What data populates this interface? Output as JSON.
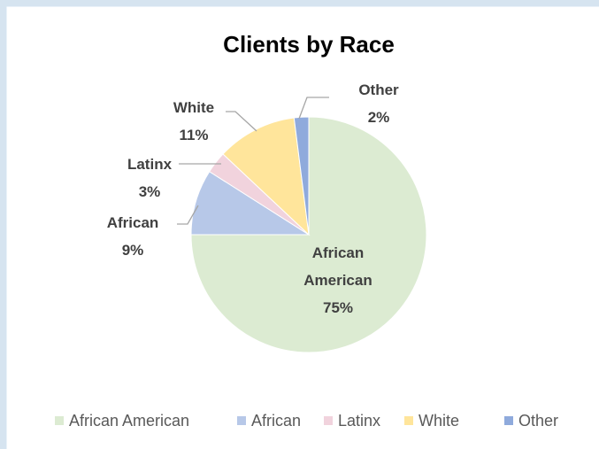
{
  "chart_data": {
    "type": "pie",
    "title": "Clients by Race",
    "categories": [
      "African American",
      "African",
      "Latinx",
      "White",
      "Other"
    ],
    "values": [
      75,
      9,
      3,
      11,
      2
    ],
    "value_labels": [
      "75%",
      "9%",
      "3%",
      "11%",
      "2%"
    ],
    "colors": [
      "#dcebd2",
      "#b7c8e8",
      "#f1d3dd",
      "#ffe59b",
      "#8faadc"
    ],
    "legend": "bottom"
  }
}
